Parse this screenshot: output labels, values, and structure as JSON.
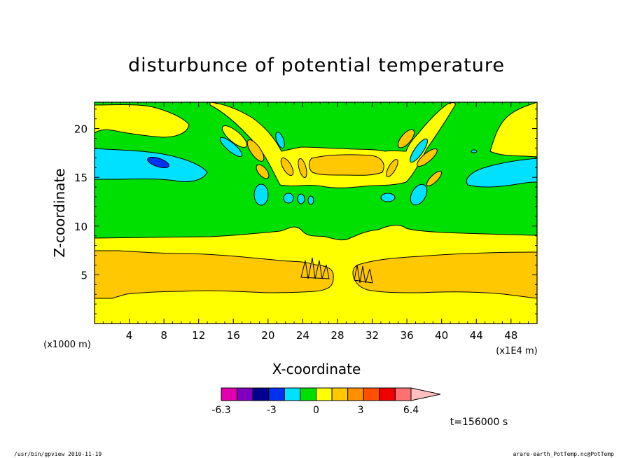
{
  "chart_data": {
    "type": "heatmap",
    "title": "disturbunce of potential temperature",
    "xlabel": "X-coordinate",
    "ylabel": "Z-coordinate",
    "xlim": [
      0,
      51
    ],
    "ylim": [
      0,
      22.7
    ],
    "x_ticks": [
      4,
      8,
      12,
      16,
      20,
      24,
      28,
      32,
      36,
      40,
      44,
      48
    ],
    "x_tick_labels": [
      "4",
      "8",
      "12",
      "16",
      "20",
      "24",
      "28",
      "32",
      "36",
      "40",
      "44",
      "48"
    ],
    "y_ticks": [
      5,
      10,
      15,
      20
    ],
    "y_tick_labels": [
      "5",
      "10",
      "15",
      "20"
    ],
    "y_unit": "(x1000 m)",
    "x_unit": "(x1E4 m)",
    "time_label": "t=156000 s",
    "colorbar": {
      "levels": [
        -6.3,
        -5.3,
        -4.2,
        -3.2,
        -2.1,
        -1.0,
        0,
        1.0,
        2.1,
        3.2,
        4.3,
        5.3,
        6.4
      ],
      "tick_labels": [
        "-6.3",
        "-3",
        "0",
        "3",
        "6.4"
      ],
      "tick_values": [
        -6.3,
        -3,
        0,
        3,
        6.4
      ],
      "colors": [
        "#e000b0",
        "#8000c0",
        "#000090",
        "#0030f0",
        "#00e0ff",
        "#00e000",
        "#ffff00",
        "#ffc800",
        "#ff9000",
        "#ff5000",
        "#f00000",
        "#ff7070"
      ],
      "extend_color": "#ffc0c0"
    },
    "regions": [
      {
        "name": "upper-green-background",
        "level": "green",
        "color": "#00e000"
      },
      {
        "name": "left-cold-band",
        "level": "cyan",
        "color": "#00e0ff"
      },
      {
        "name": "left-cold-core",
        "level": "blue",
        "color": "#0030f0"
      },
      {
        "name": "right-cold-band",
        "level": "cyan",
        "color": "#00e0ff"
      },
      {
        "name": "center-upper-warm",
        "level": "yellow",
        "color": "#ffff00"
      },
      {
        "name": "center-upper-warm-core",
        "level": "orange",
        "color": "#ffc800"
      },
      {
        "name": "lower-warm-layer",
        "level": "yellow",
        "color": "#ffff00"
      },
      {
        "name": "lower-warm-core",
        "level": "orange",
        "color": "#ffc800"
      }
    ]
  },
  "footer": {
    "left": "/usr/bin/gpview   2010-11-19",
    "right": "arare-earth_PotTemp.nc@PotTemp"
  }
}
